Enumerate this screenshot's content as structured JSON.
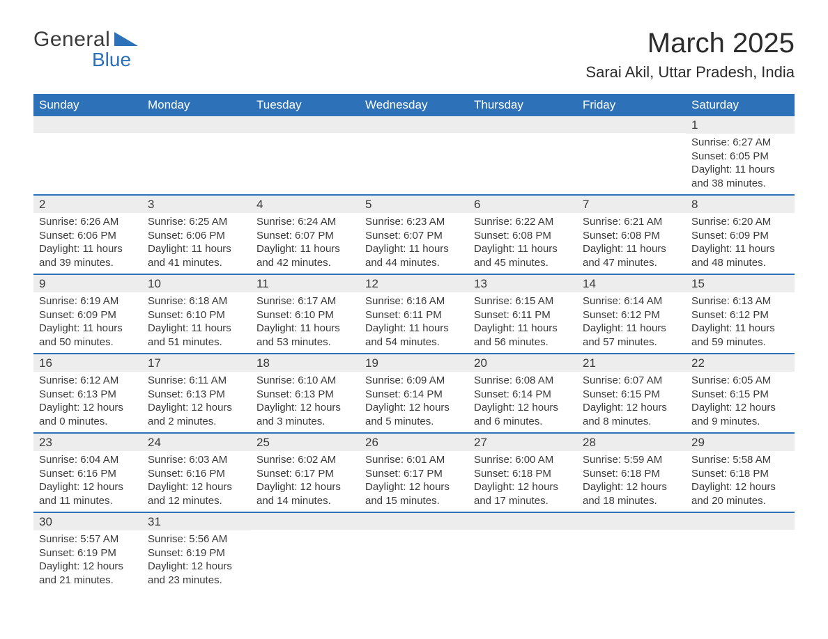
{
  "logo": {
    "text_general": "General",
    "text_blue": "Blue",
    "tri_color": "#2d72b8"
  },
  "header": {
    "title": "March 2025",
    "location": "Sarai Akil, Uttar Pradesh, India"
  },
  "colors": {
    "header_bg": "#2d72b8",
    "header_fg": "#ffffff",
    "daynum_bg": "#ededed",
    "row_border": "#2d72b8",
    "text": "#3a3a3a",
    "page_bg": "#ffffff"
  },
  "weekdays": [
    "Sunday",
    "Monday",
    "Tuesday",
    "Wednesday",
    "Thursday",
    "Friday",
    "Saturday"
  ],
  "weeks": [
    [
      null,
      null,
      null,
      null,
      null,
      null,
      {
        "day": "1",
        "sunrise": "Sunrise: 6:27 AM",
        "sunset": "Sunset: 6:05 PM",
        "daylight": "Daylight: 11 hours and 38 minutes."
      }
    ],
    [
      {
        "day": "2",
        "sunrise": "Sunrise: 6:26 AM",
        "sunset": "Sunset: 6:06 PM",
        "daylight": "Daylight: 11 hours and 39 minutes."
      },
      {
        "day": "3",
        "sunrise": "Sunrise: 6:25 AM",
        "sunset": "Sunset: 6:06 PM",
        "daylight": "Daylight: 11 hours and 41 minutes."
      },
      {
        "day": "4",
        "sunrise": "Sunrise: 6:24 AM",
        "sunset": "Sunset: 6:07 PM",
        "daylight": "Daylight: 11 hours and 42 minutes."
      },
      {
        "day": "5",
        "sunrise": "Sunrise: 6:23 AM",
        "sunset": "Sunset: 6:07 PM",
        "daylight": "Daylight: 11 hours and 44 minutes."
      },
      {
        "day": "6",
        "sunrise": "Sunrise: 6:22 AM",
        "sunset": "Sunset: 6:08 PM",
        "daylight": "Daylight: 11 hours and 45 minutes."
      },
      {
        "day": "7",
        "sunrise": "Sunrise: 6:21 AM",
        "sunset": "Sunset: 6:08 PM",
        "daylight": "Daylight: 11 hours and 47 minutes."
      },
      {
        "day": "8",
        "sunrise": "Sunrise: 6:20 AM",
        "sunset": "Sunset: 6:09 PM",
        "daylight": "Daylight: 11 hours and 48 minutes."
      }
    ],
    [
      {
        "day": "9",
        "sunrise": "Sunrise: 6:19 AM",
        "sunset": "Sunset: 6:09 PM",
        "daylight": "Daylight: 11 hours and 50 minutes."
      },
      {
        "day": "10",
        "sunrise": "Sunrise: 6:18 AM",
        "sunset": "Sunset: 6:10 PM",
        "daylight": "Daylight: 11 hours and 51 minutes."
      },
      {
        "day": "11",
        "sunrise": "Sunrise: 6:17 AM",
        "sunset": "Sunset: 6:10 PM",
        "daylight": "Daylight: 11 hours and 53 minutes."
      },
      {
        "day": "12",
        "sunrise": "Sunrise: 6:16 AM",
        "sunset": "Sunset: 6:11 PM",
        "daylight": "Daylight: 11 hours and 54 minutes."
      },
      {
        "day": "13",
        "sunrise": "Sunrise: 6:15 AM",
        "sunset": "Sunset: 6:11 PM",
        "daylight": "Daylight: 11 hours and 56 minutes."
      },
      {
        "day": "14",
        "sunrise": "Sunrise: 6:14 AM",
        "sunset": "Sunset: 6:12 PM",
        "daylight": "Daylight: 11 hours and 57 minutes."
      },
      {
        "day": "15",
        "sunrise": "Sunrise: 6:13 AM",
        "sunset": "Sunset: 6:12 PM",
        "daylight": "Daylight: 11 hours and 59 minutes."
      }
    ],
    [
      {
        "day": "16",
        "sunrise": "Sunrise: 6:12 AM",
        "sunset": "Sunset: 6:13 PM",
        "daylight": "Daylight: 12 hours and 0 minutes."
      },
      {
        "day": "17",
        "sunrise": "Sunrise: 6:11 AM",
        "sunset": "Sunset: 6:13 PM",
        "daylight": "Daylight: 12 hours and 2 minutes."
      },
      {
        "day": "18",
        "sunrise": "Sunrise: 6:10 AM",
        "sunset": "Sunset: 6:13 PM",
        "daylight": "Daylight: 12 hours and 3 minutes."
      },
      {
        "day": "19",
        "sunrise": "Sunrise: 6:09 AM",
        "sunset": "Sunset: 6:14 PM",
        "daylight": "Daylight: 12 hours and 5 minutes."
      },
      {
        "day": "20",
        "sunrise": "Sunrise: 6:08 AM",
        "sunset": "Sunset: 6:14 PM",
        "daylight": "Daylight: 12 hours and 6 minutes."
      },
      {
        "day": "21",
        "sunrise": "Sunrise: 6:07 AM",
        "sunset": "Sunset: 6:15 PM",
        "daylight": "Daylight: 12 hours and 8 minutes."
      },
      {
        "day": "22",
        "sunrise": "Sunrise: 6:05 AM",
        "sunset": "Sunset: 6:15 PM",
        "daylight": "Daylight: 12 hours and 9 minutes."
      }
    ],
    [
      {
        "day": "23",
        "sunrise": "Sunrise: 6:04 AM",
        "sunset": "Sunset: 6:16 PM",
        "daylight": "Daylight: 12 hours and 11 minutes."
      },
      {
        "day": "24",
        "sunrise": "Sunrise: 6:03 AM",
        "sunset": "Sunset: 6:16 PM",
        "daylight": "Daylight: 12 hours and 12 minutes."
      },
      {
        "day": "25",
        "sunrise": "Sunrise: 6:02 AM",
        "sunset": "Sunset: 6:17 PM",
        "daylight": "Daylight: 12 hours and 14 minutes."
      },
      {
        "day": "26",
        "sunrise": "Sunrise: 6:01 AM",
        "sunset": "Sunset: 6:17 PM",
        "daylight": "Daylight: 12 hours and 15 minutes."
      },
      {
        "day": "27",
        "sunrise": "Sunrise: 6:00 AM",
        "sunset": "Sunset: 6:18 PM",
        "daylight": "Daylight: 12 hours and 17 minutes."
      },
      {
        "day": "28",
        "sunrise": "Sunrise: 5:59 AM",
        "sunset": "Sunset: 6:18 PM",
        "daylight": "Daylight: 12 hours and 18 minutes."
      },
      {
        "day": "29",
        "sunrise": "Sunrise: 5:58 AM",
        "sunset": "Sunset: 6:18 PM",
        "daylight": "Daylight: 12 hours and 20 minutes."
      }
    ],
    [
      {
        "day": "30",
        "sunrise": "Sunrise: 5:57 AM",
        "sunset": "Sunset: 6:19 PM",
        "daylight": "Daylight: 12 hours and 21 minutes."
      },
      {
        "day": "31",
        "sunrise": "Sunrise: 5:56 AM",
        "sunset": "Sunset: 6:19 PM",
        "daylight": "Daylight: 12 hours and 23 minutes."
      },
      null,
      null,
      null,
      null,
      null
    ]
  ]
}
